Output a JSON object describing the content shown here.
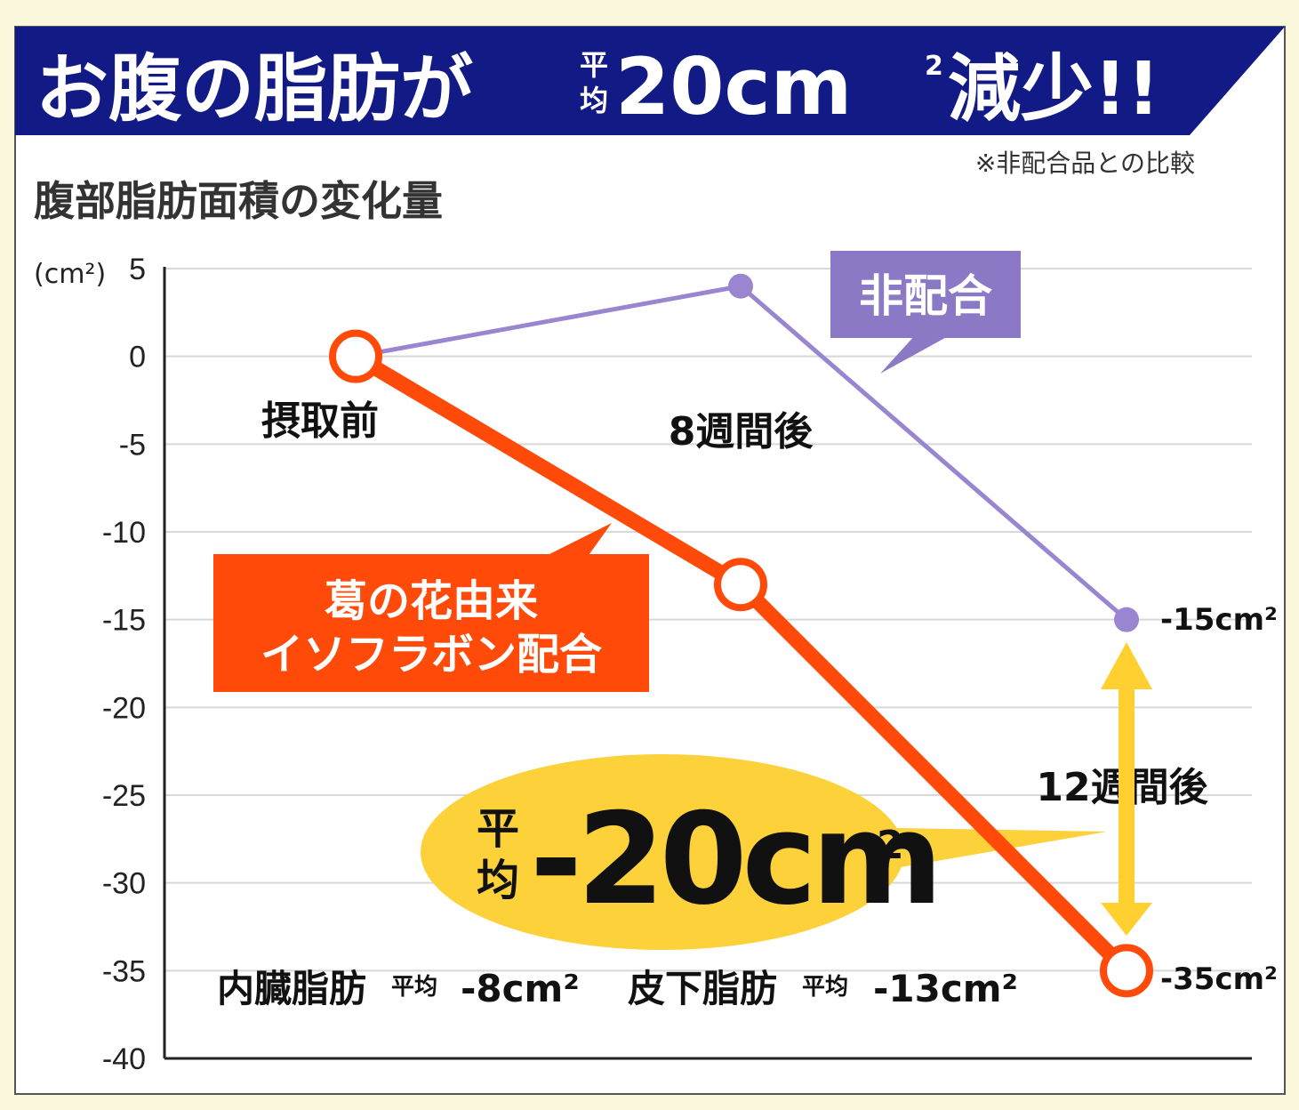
{
  "header": {
    "title_main": "お腹の脂肪が",
    "title_small_top": "平",
    "title_small_bottom": "均",
    "title_value": "20cm",
    "title_sup": "2",
    "title_end": "減少!!"
  },
  "note": "※非配合品との比較",
  "chart_title": "腹部脂肪面積の変化量",
  "y_unit_label": "(cm²)",
  "colors": {
    "banner": "#121a85",
    "isoflavone": "#ff4a0a",
    "control": "#9a86d0",
    "control_label_bg": "#8b79c6",
    "callout": "#fcd13a",
    "arrow": "#ffd030"
  },
  "chart_data": {
    "type": "line",
    "x": [
      "摂取前",
      "8週間後",
      "12週間後"
    ],
    "ylim": [
      -40,
      5
    ],
    "yticks": [
      "5",
      "0",
      "-5",
      "-10",
      "-15",
      "-20",
      "-25",
      "-30",
      "-35",
      "-40"
    ],
    "ytick_values": [
      5,
      0,
      -5,
      -10,
      -15,
      -20,
      -25,
      -30,
      -35,
      -40
    ],
    "grid": true,
    "series": [
      {
        "name": "葛の花由来イソフラボン配合",
        "values": [
          0,
          -13,
          -35
        ],
        "end_label": "-35cm²"
      },
      {
        "name": "非配合",
        "values": [
          0,
          4,
          -15
        ],
        "end_label": "-15cm²"
      }
    ]
  },
  "labels": {
    "isoflavone_line1": "葛の花由来",
    "isoflavone_line2": "イソフラボン配合",
    "control": "非配合"
  },
  "callout": {
    "prefix_top": "平",
    "prefix_bottom": "均",
    "value": "-20cm",
    "sup": "2"
  },
  "breakdown": {
    "visceral_label": "内臓脂肪",
    "visceral_avg": "平均",
    "visceral_value": "-8cm²",
    "subcutaneous_label": "皮下脂肪",
    "subcutaneous_avg": "平均",
    "subcutaneous_value": "-13cm²"
  }
}
